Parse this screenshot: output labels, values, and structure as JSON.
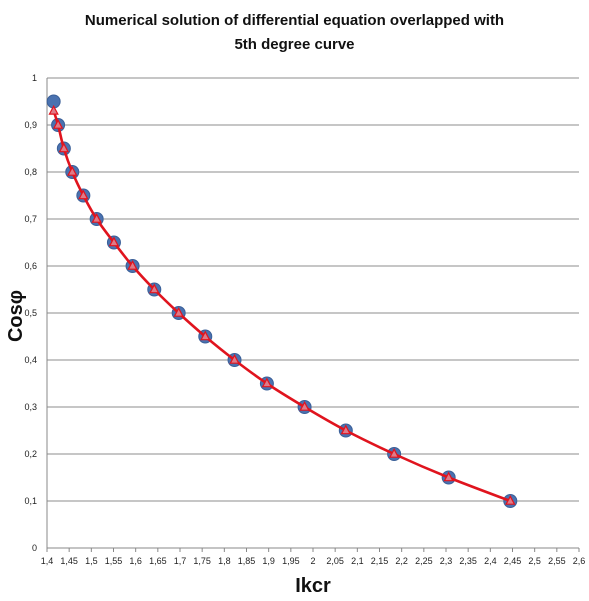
{
  "chart_data": {
    "type": "scatter",
    "title_line1": "Numerical solution of differential equation overlapped with",
    "title_line2": "5th degree curve",
    "xlabel": "Ikcr",
    "ylabel": "Cosφ",
    "xlim": [
      1.4,
      2.6
    ],
    "ylim": [
      0,
      1
    ],
    "grid": true,
    "x_ticks": [
      "1,4",
      "1,45",
      "1,5",
      "1,55",
      "1,6",
      "1,65",
      "1,7",
      "1,75",
      "1,8",
      "1,85",
      "1,9",
      "1,95",
      "2",
      "2,05",
      "2,1",
      "2,15",
      "2,2",
      "2,25",
      "2,3",
      "2,35",
      "2,4",
      "2,45",
      "2,5",
      "2,55",
      "2,6"
    ],
    "y_ticks": [
      "0",
      "0,1",
      "0,2",
      "0,3",
      "0,4",
      "0,5",
      "0,6",
      "0,7",
      "0,8",
      "0,9",
      "1"
    ],
    "series": [
      {
        "marker": "circle",
        "color": "#4a72b0",
        "x": [
          1.415,
          1.425,
          1.438,
          1.457,
          1.482,
          1.512,
          1.551,
          1.593,
          1.642,
          1.697,
          1.757,
          1.823,
          1.896,
          1.981,
          2.074,
          2.183,
          2.306,
          2.445
        ],
        "y": [
          0.95,
          0.9,
          0.85,
          0.8,
          0.75,
          0.7,
          0.65,
          0.6,
          0.55,
          0.5,
          0.45,
          0.4,
          0.35,
          0.3,
          0.25,
          0.2,
          0.15,
          0.1
        ]
      },
      {
        "marker": "triangle",
        "line": true,
        "color": "#e0141e",
        "x": [
          1.415,
          1.425,
          1.438,
          1.457,
          1.482,
          1.512,
          1.551,
          1.593,
          1.642,
          1.697,
          1.757,
          1.823,
          1.896,
          1.981,
          2.074,
          2.183,
          2.306,
          2.445
        ],
        "y": [
          0.93,
          0.9,
          0.85,
          0.8,
          0.75,
          0.7,
          0.65,
          0.6,
          0.55,
          0.5,
          0.45,
          0.4,
          0.35,
          0.3,
          0.25,
          0.2,
          0.15,
          0.1
        ]
      }
    ]
  }
}
